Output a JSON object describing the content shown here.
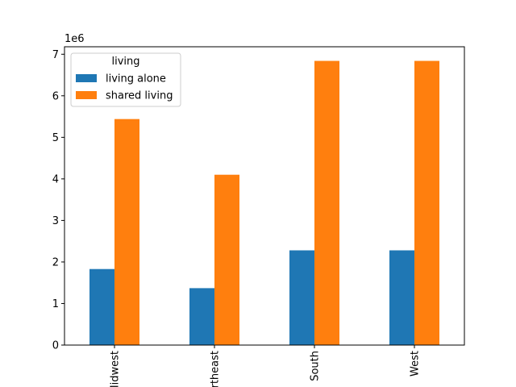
{
  "chart_data": {
    "type": "bar",
    "title": "",
    "xlabel": "",
    "ylabel": "",
    "offset_label": "1e6",
    "categories": [
      "Midwest",
      "Northeast",
      "South",
      "West"
    ],
    "series": [
      {
        "name": "living alone",
        "color": "#1f77b4",
        "values": [
          1830000,
          1370000,
          2280000,
          2280000
        ]
      },
      {
        "name": "shared living",
        "color": "#ff7f0e",
        "values": [
          5440000,
          4100000,
          6840000,
          6840000
        ]
      }
    ],
    "ylim": [
      0,
      7180000
    ],
    "yticks": [
      0,
      1,
      2,
      3,
      4,
      5,
      6,
      7
    ],
    "ytick_multiplier": 1000000,
    "legend": {
      "title": "living",
      "position": "top-left"
    },
    "grid": false,
    "xtick_rotation": 90
  }
}
